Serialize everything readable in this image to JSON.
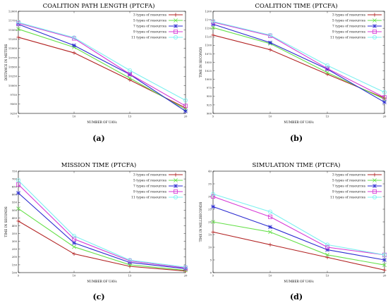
{
  "chart_data": [
    {
      "type": "line",
      "panel_label": "(a)",
      "title": "COALITION PATH LENGTH (PTCFA)",
      "xlabel": "NUMBER OF UAVs",
      "ylabel": "DISTANCE IN METERS",
      "x": [
        5,
        10,
        15,
        20
      ],
      "xticks": [
        "5",
        "10",
        "15",
        "20"
      ],
      "ylim": [
        9250,
        12000
      ],
      "yticks": [
        "9250",
        "9500",
        "9750",
        "10000",
        "10250",
        "10500",
        "10750",
        "11000",
        "11250",
        "11500",
        "11750",
        "12000"
      ],
      "grid": false,
      "legend": "top-right",
      "series": [
        {
          "name": "3 types of resources",
          "values": [
            11300,
            10880,
            10150,
            9400
          ]
        },
        {
          "name": "5 types of resources",
          "values": [
            11520,
            11030,
            10200,
            9360
          ]
        },
        {
          "name": "7 types of resources",
          "values": [
            11650,
            11080,
            10300,
            9310
          ]
        },
        {
          "name": "9 types of resources",
          "values": [
            11680,
            11270,
            10310,
            9450
          ]
        },
        {
          "name": "11 types of resources",
          "values": [
            11700,
            11290,
            10410,
            9600
          ]
        }
      ]
    },
    {
      "type": "line",
      "panel_label": "(b)",
      "title": "COALITION TIME (PTCFA)",
      "xlabel": "NUMBER OF UAVs",
      "ylabel": "TIME IN SECONDS",
      "x": [
        5,
        10,
        15,
        20
      ],
      "xticks": [
        "5",
        "10",
        "15",
        "20"
      ],
      "ylim": [
        900,
        1200
      ],
      "yticks": [
        "900",
        "925",
        "950",
        "975",
        "1000",
        "1025",
        "1050",
        "1075",
        "1100",
        "1125",
        "1150",
        "1175",
        "1200"
      ],
      "grid": false,
      "legend": "top-right",
      "series": [
        {
          "name": "3 types of resources",
          "values": [
            1130,
            1087,
            1015,
            945
          ]
        },
        {
          "name": "5 types of resources",
          "values": [
            1152,
            1105,
            1020,
            942
          ]
        },
        {
          "name": "7 types of resources",
          "values": [
            1162,
            1108,
            1030,
            933
          ]
        },
        {
          "name": "9 types of resources",
          "values": [
            1168,
            1128,
            1032,
            947
          ]
        },
        {
          "name": "11 types of resources",
          "values": [
            1170,
            1130,
            1041,
            962
          ]
        }
      ]
    },
    {
      "type": "line",
      "panel_label": "(c)",
      "title": "MISSION TIME (PTCFA)",
      "xlabel": "NUMBER OF UAVs",
      "ylabel": "TIME IN SECONDS",
      "x": [
        5,
        10,
        15,
        20
      ],
      "xticks": [
        "5",
        "10",
        "15",
        "20"
      ],
      "ylim": [
        100,
        750
      ],
      "yticks": [
        "100",
        "150",
        "200",
        "250",
        "300",
        "350",
        "400",
        "450",
        "500",
        "550",
        "600",
        "650",
        "700",
        "750"
      ],
      "grid": false,
      "legend": "top-right",
      "series": [
        {
          "name": "3 types of resources",
          "values": [
            430,
            220,
            140,
            110
          ]
        },
        {
          "name": "5 types of resources",
          "values": [
            510,
            265,
            150,
            115
          ]
        },
        {
          "name": "7 types of resources",
          "values": [
            610,
            290,
            165,
            125
          ]
        },
        {
          "name": "9 types of resources",
          "values": [
            665,
            315,
            175,
            130
          ]
        },
        {
          "name": "11 types of resources",
          "values": [
            690,
            335,
            180,
            135
          ]
        }
      ]
    },
    {
      "type": "line",
      "panel_label": "(d)",
      "title": "SIMULATION TIME (PTCFA)",
      "xlabel": "NUMBER OF UAVs",
      "ylabel": "TIME IN MILLISECONDS",
      "x": [
        5,
        10,
        15,
        20
      ],
      "xticks": [
        "5",
        "10",
        "15",
        "20"
      ],
      "ylim": [
        0,
        40
      ],
      "yticks": [
        "0",
        "5",
        "10",
        "15",
        "20",
        "25",
        "30",
        "35",
        "40"
      ],
      "grid": false,
      "legend": "top-right",
      "series": [
        {
          "name": "3 types of resources",
          "values": [
            16,
            11,
            6,
            1
          ]
        },
        {
          "name": "5 types of resources",
          "values": [
            20,
            16,
            7,
            3
          ]
        },
        {
          "name": "7 types of resources",
          "values": [
            26,
            18,
            9,
            5
          ]
        },
        {
          "name": "9 types of resources",
          "values": [
            30,
            22,
            10,
            7
          ]
        },
        {
          "name": "11 types of resources",
          "values": [
            31,
            24,
            11,
            7
          ]
        }
      ]
    }
  ],
  "series_styles": [
    {
      "color": "#b22222",
      "marker": "plus"
    },
    {
      "color": "#66e04a",
      "marker": "cross"
    },
    {
      "color": "#2a2ad0",
      "marker": "star"
    },
    {
      "color": "#d63ad6",
      "marker": "square"
    },
    {
      "color": "#7cf0f0",
      "marker": "circle"
    }
  ]
}
